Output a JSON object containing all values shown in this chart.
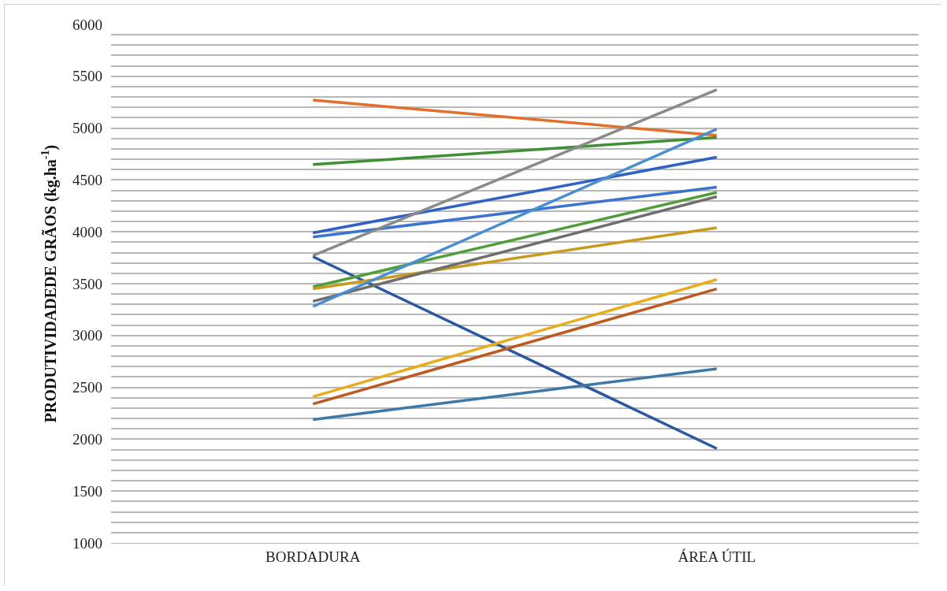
{
  "chart_data": {
    "type": "line",
    "ylabel": "PRODUTIVIDADEDE GRÃOS (kg.ha$^{-1}$)",
    "categories": [
      "BORDADURA",
      "ÁREA ÚTIL"
    ],
    "ylim": [
      1000,
      6000
    ],
    "yticks": [
      1000,
      {
        "value": 1100,
        "label": null
      },
      {
        "value": 1200,
        "label": null
      },
      {
        "value": 1300,
        "label": null
      },
      {
        "value": 1400,
        "label": null
      },
      1500,
      {
        "value": 1600,
        "label": null
      },
      {
        "value": 1700,
        "label": null
      },
      {
        "value": 1800,
        "label": null
      },
      {
        "value": 1900,
        "label": null
      },
      2000,
      {
        "value": 2100,
        "label": null
      },
      {
        "value": 2200,
        "label": null
      },
      {
        "value": 2300,
        "label": null
      },
      {
        "value": 2400,
        "label": null
      },
      2500,
      {
        "value": 2600,
        "label": null
      },
      {
        "value": 2700,
        "label": null
      },
      {
        "value": 2800,
        "label": null
      },
      {
        "value": 2900,
        "label": null
      },
      3000,
      {
        "value": 3100,
        "label": null
      },
      {
        "value": 3200,
        "label": null
      },
      {
        "value": 3300,
        "label": null
      },
      {
        "value": 3400,
        "label": null
      },
      3500,
      {
        "value": 3600,
        "label": null
      },
      {
        "value": 3700,
        "label": null
      },
      {
        "value": 3800,
        "label": null
      },
      {
        "value": 3900,
        "label": null
      },
      4000,
      {
        "value": 4100,
        "label": null
      },
      {
        "value": 4200,
        "label": null
      },
      {
        "value": 4300,
        "label": null
      },
      {
        "value": 4400,
        "label": null
      },
      4500,
      {
        "value": 4600,
        "label": null
      },
      {
        "value": 4700,
        "label": null
      },
      {
        "value": 4800,
        "label": null
      },
      {
        "value": 4900,
        "label": null
      },
      5000,
      {
        "value": 5100,
        "label": null
      },
      {
        "value": 5200,
        "label": null
      },
      {
        "value": 5300,
        "label": null
      },
      {
        "value": 5400,
        "label": null
      },
      5500,
      {
        "value": 5600,
        "label": null
      },
      {
        "value": 5700,
        "label": null
      },
      {
        "value": 5800,
        "label": null
      },
      {
        "value": 5900,
        "label": null
      },
      6000
    ],
    "grid": "y",
    "marker": "none",
    "line_style": "solid",
    "series": [
      {
        "color": "#e2702c",
        "values": [
          5270,
          4930
        ]
      },
      {
        "color": "#3f8f35",
        "values": [
          4650,
          4910
        ]
      },
      {
        "color": "#2f62c4",
        "values": [
          3990,
          4720
        ]
      },
      {
        "color": "#3a73d2",
        "values": [
          3950,
          4430
        ]
      },
      {
        "color": "#8a8a8a",
        "values": [
          3770,
          5370
        ]
      },
      {
        "color": "#2a58a0",
        "values": [
          3760,
          1910
        ]
      },
      {
        "color": "#4f9e3a",
        "values": [
          3470,
          4380
        ]
      },
      {
        "color": "#c99a1e",
        "values": [
          3450,
          4040
        ]
      },
      {
        "color": "#6e6e6e",
        "values": [
          3330,
          4340
        ]
      },
      {
        "color": "#4a8ed2",
        "values": [
          3280,
          4990
        ]
      },
      {
        "color": "#e8ac1c",
        "values": [
          2410,
          3540
        ]
      },
      {
        "color": "#bd5a22",
        "values": [
          2340,
          3450
        ]
      },
      {
        "color": "#3c79a8",
        "values": [
          2190,
          2680
        ]
      }
    ]
  }
}
